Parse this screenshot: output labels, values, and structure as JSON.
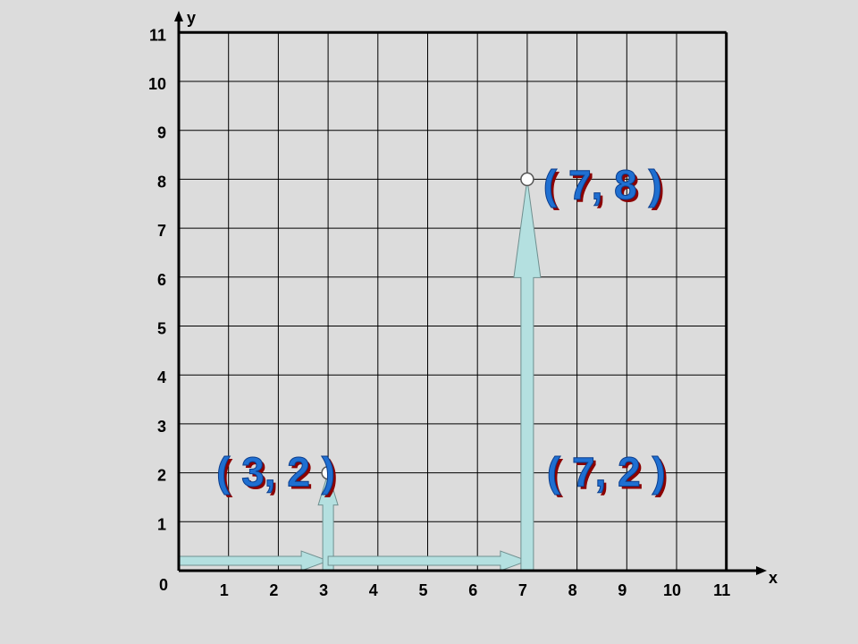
{
  "axes": {
    "x_label": "x",
    "y_label": "y",
    "origin_label": "0",
    "x_ticks": [
      "1",
      "2",
      "3",
      "4",
      "5",
      "6",
      "7",
      "8",
      "9",
      "10",
      "11"
    ],
    "y_ticks": [
      "1",
      "2",
      "3",
      "4",
      "5",
      "6",
      "7",
      "8",
      "9",
      "10",
      "11"
    ],
    "range": [
      0,
      11
    ]
  },
  "points": [
    {
      "label": "( 3, 2 )",
      "x": 3,
      "y": 2
    },
    {
      "label": "( 7, 8 )",
      "x": 7,
      "y": 8
    },
    {
      "label": "( 7, 2 )",
      "x": 7,
      "y": 2
    }
  ],
  "arrows": [
    {
      "from": [
        0,
        0.2
      ],
      "to": [
        3,
        0.2
      ],
      "direction": "horizontal"
    },
    {
      "from": [
        3,
        0
      ],
      "to": [
        3,
        2
      ],
      "direction": "vertical"
    },
    {
      "from": [
        3,
        0.2
      ],
      "to": [
        7,
        0.2
      ],
      "direction": "horizontal"
    },
    {
      "from": [
        7,
        0
      ],
      "to": [
        7,
        8
      ],
      "direction": "vertical"
    }
  ],
  "colors": {
    "background": "#dcdcdc",
    "grid": "#000000",
    "arrow_fill": "#b4e0e0",
    "arrow_stroke": "#6f8f8f",
    "label_fill": "#1f6fd1",
    "label_shadow": "#8b0000"
  }
}
